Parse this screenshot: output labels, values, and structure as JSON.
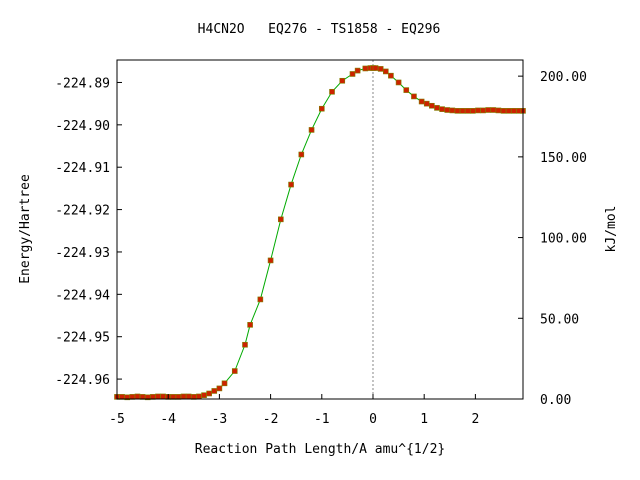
{
  "chart_data": {
    "type": "line",
    "title": "H4CN2O   EQ276 - TS1858 - EQ296",
    "xlabel": "Reaction Path Length/A amu^{1/2}",
    "ylabel": "Energy/Hartree",
    "y2label": "kJ/mol",
    "xlim": [
      -5.0,
      2.93
    ],
    "ylim": [
      -224.9647,
      -224.8847
    ],
    "y2lim": [
      0.0,
      210.0
    ],
    "x_ticks": [
      "-5",
      "-4",
      "-3",
      "-2",
      "-1",
      "0",
      "1",
      "2"
    ],
    "y_ticks": [
      "-224.89",
      "-224.90",
      "-224.91",
      "-224.92",
      "-224.93",
      "-224.94",
      "-224.95",
      "-224.96"
    ],
    "y2_ticks": [
      "200.00",
      "150.00",
      "100.00",
      "50.00",
      "0.00"
    ],
    "ts_x": 0.0,
    "grid": false,
    "colors": {
      "line": "#00aa00",
      "marker": "#cc2200",
      "marker_edge": "#808000",
      "ts_line": "#888888",
      "axis": "#000000"
    },
    "series": [
      {
        "x": [
          -5.0,
          -4.9,
          -4.8,
          -4.7,
          -4.6,
          -4.5,
          -4.4,
          -4.3,
          -4.2,
          -4.1,
          -4.0,
          -3.9,
          -3.8,
          -3.7,
          -3.6,
          -3.5,
          -3.4,
          -3.3,
          -3.2,
          -3.1,
          -3.0,
          -2.9,
          -2.7,
          -2.5,
          -2.4,
          -2.2,
          -2.0,
          -1.8,
          -1.6,
          -1.4,
          -1.2,
          -1.0,
          -0.8,
          -0.6,
          -0.4,
          -0.3,
          -0.15,
          -0.05,
          0.0,
          0.05,
          0.15,
          0.25,
          0.35,
          0.5,
          0.65,
          0.8,
          0.95,
          1.05,
          1.15,
          1.25,
          1.35,
          1.45,
          1.55,
          1.65,
          1.75,
          1.85,
          1.95,
          2.05,
          2.15,
          2.25,
          2.35,
          2.45,
          2.55,
          2.65,
          2.75,
          2.85,
          2.93
        ],
        "y": [
          -224.9642,
          -224.9642,
          -224.9643,
          -224.9642,
          -224.9641,
          -224.9642,
          -224.9643,
          -224.9642,
          -224.9641,
          -224.9641,
          -224.9642,
          -224.9642,
          -224.9642,
          -224.9641,
          -224.9641,
          -224.9642,
          -224.9641,
          -224.9638,
          -224.9634,
          -224.9628,
          -224.9622,
          -224.961,
          -224.9581,
          -224.9519,
          -224.9472,
          -224.9412,
          -224.932,
          -224.9223,
          -224.9141,
          -224.907,
          -224.9012,
          -224.8962,
          -224.8922,
          -224.8896,
          -224.888,
          -224.8872,
          -224.8867,
          -224.8866,
          -224.8866,
          -224.8866,
          -224.8868,
          -224.8874,
          -224.8884,
          -224.89,
          -224.8918,
          -224.8933,
          -224.8945,
          -224.895,
          -224.8955,
          -224.896,
          -224.8963,
          -224.8965,
          -224.8966,
          -224.8967,
          -224.8967,
          -224.8967,
          -224.8967,
          -224.8966,
          -224.8966,
          -224.8965,
          -224.8965,
          -224.8966,
          -224.8967,
          -224.8967,
          -224.8967,
          -224.8967,
          -224.8967
        ]
      }
    ]
  }
}
